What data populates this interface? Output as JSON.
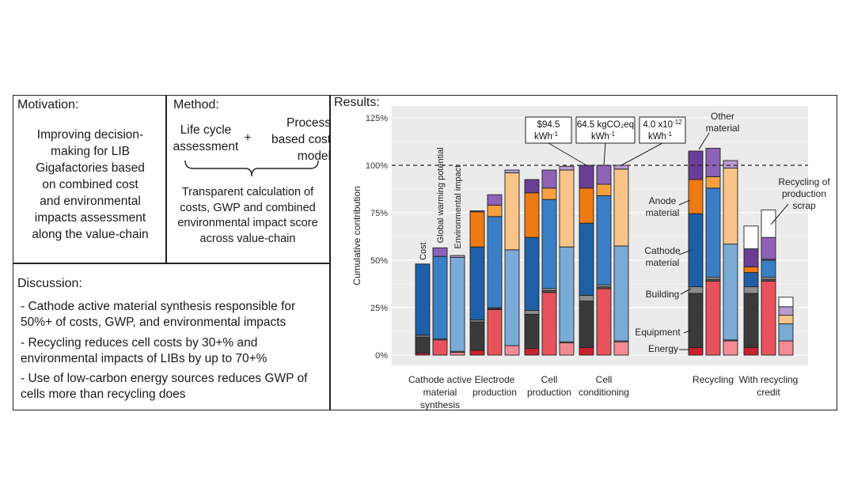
{
  "motivation": {
    "heading": "Motivation:",
    "lines": [
      "Improving decision-",
      "making for LIB",
      "Gigafactories based",
      "on combined cost",
      "and environmental",
      "impacts assessment",
      "along the value-chain"
    ]
  },
  "method": {
    "heading": "Method:",
    "lca": [
      "Life cycle",
      "assessment"
    ],
    "plus": "+",
    "pbcm": [
      "Process",
      "based cost",
      "model"
    ],
    "result": [
      "Transparent calculation of",
      "costs, GWP and combined",
      "environmental impact score",
      "across value-chain"
    ]
  },
  "discussion": {
    "heading": "Discussion:",
    "bullets": [
      [
        "- Cathode active material synthesis responsible for",
        "50%+ of costs, GWP, and environmental impacts"
      ],
      [
        "- Recycling reduces cell costs by 30+% and",
        "environmental impacts of LIBs by up to 70+%"
      ],
      [
        "- Use of low-carbon energy sources reduces GWP of",
        "cells more than recycling does"
      ]
    ]
  },
  "results_heading": "Results:",
  "chart_data": {
    "type": "bar",
    "stacked": true,
    "ylabel": "Cumulative contribution",
    "ylim": [
      -5,
      130
    ],
    "yticks": [
      0,
      25,
      50,
      75,
      100,
      125
    ],
    "ytick_labels": [
      "0%",
      "25%",
      "50%",
      "75%",
      "100%",
      "125%"
    ],
    "reference_line": 100,
    "metrics": [
      "Cost",
      "Global warming potential",
      "Environmental impact"
    ],
    "components": [
      "Energy",
      "Equipment",
      "Building",
      "Cathode material",
      "Anode material",
      "Other material",
      "Recycling of production scrap"
    ],
    "colors": {
      "Energy": [
        "#c9202f",
        "#e8525c",
        "#f28b93"
      ],
      "Equipment": [
        "#3a3a3a",
        "#555555",
        "#7a7a7a"
      ],
      "Building": [
        "#8c8c8c",
        "#a8a8a8",
        "#c9c9c9"
      ],
      "Cathode material": [
        "#1f5fa8",
        "#3a7fc5",
        "#7aaad6"
      ],
      "Anode material": [
        "#ee7a12",
        "#f5a040",
        "#f9c48a"
      ],
      "Other material": [
        "#6a3d96",
        "#8e62b6",
        "#b79bd1"
      ],
      "Recycling of production scrap": [
        "#ffffff",
        "#ffffff",
        "#ffffff"
      ]
    },
    "groups": [
      {
        "label": [
          "Cathode active",
          "material",
          "synthesis"
        ],
        "bars": [
          {
            "Energy": 1,
            "Equipment": 8.5,
            "Building": 1,
            "Cathode material": 37.5
          },
          {
            "Energy": 8,
            "Equipment": 0,
            "Building": 0.5,
            "Cathode material": 43.5,
            "Other material": 4.5
          },
          {
            "Energy": 1.5,
            "Equipment": 0,
            "Building": 0.5,
            "Cathode material": 49.5,
            "Other material": 1
          }
        ]
      },
      {
        "label": [
          "Electrode",
          "production"
        ],
        "bars": [
          {
            "Energy": 2.5,
            "Equipment": 15,
            "Building": 1,
            "Cathode material": 38.5,
            "Anode material": 18.5,
            "Other material": 0.5
          },
          {
            "Energy": 24,
            "Equipment": 0.5,
            "Building": 0.5,
            "Cathode material": 48,
            "Anode material": 6,
            "Other material": 5.5
          },
          {
            "Energy": 5,
            "Equipment": 0,
            "Building": 0,
            "Cathode material": 50.5,
            "Anode material": 40.5,
            "Other material": 1.5
          }
        ]
      },
      {
        "label": [
          "Cell",
          "production"
        ],
        "bars": [
          {
            "Energy": 3.5,
            "Equipment": 18,
            "Building": 2,
            "Cathode material": 38.5,
            "Anode material": 23.5,
            "Other material": 7
          },
          {
            "Energy": 33,
            "Equipment": 1,
            "Building": 1,
            "Cathode material": 47,
            "Anode material": 6,
            "Other material": 9.5
          },
          {
            "Energy": 6.5,
            "Equipment": 0,
            "Building": 0.5,
            "Cathode material": 50,
            "Anode material": 40.5,
            "Other material": 2
          }
        ]
      },
      {
        "label": [
          "Cell",
          "conditioning"
        ],
        "bars": [
          {
            "Energy": 4,
            "Equipment": 24.5,
            "Building": 3,
            "Cathode material": 38,
            "Anode material": 18.5,
            "Other material": 12
          },
          {
            "Energy": 35,
            "Equipment": 1,
            "Building": 1,
            "Cathode material": 47,
            "Anode material": 6,
            "Other material": 10
          },
          {
            "Energy": 7,
            "Equipment": 0,
            "Building": 0.5,
            "Cathode material": 50,
            "Anode material": 40.5,
            "Other material": 2
          }
        ]
      },
      {
        "label": [
          "Recycling"
        ],
        "bars": [
          {
            "Energy": 4,
            "Equipment": 28.5,
            "Building": 3.5,
            "Cathode material": 38.5,
            "Anode material": 18,
            "Other material": 15
          },
          {
            "Energy": 39,
            "Equipment": 1,
            "Building": 1,
            "Cathode material": 47,
            "Anode material": 6,
            "Other material": 15
          },
          {
            "Energy": 7.5,
            "Equipment": 0,
            "Building": 0.5,
            "Cathode material": 50.5,
            "Anode material": 40,
            "Other material": 4
          }
        ]
      },
      {
        "label": [
          "With recycling",
          "credit"
        ],
        "bars": [
          {
            "Energy": 4,
            "Equipment": 28.5,
            "Building": 3.5,
            "Cathode material": 7.5,
            "Anode material": 3,
            "Other material": 9.5,
            "Recycling of production scrap": 12
          },
          {
            "Energy": 39,
            "Equipment": 1,
            "Building": 1,
            "Cathode material": 9,
            "Anode material": 0.5,
            "Other material": 11.5,
            "Recycling of production scrap": 14.5
          },
          {
            "Energy": 7.5,
            "Equipment": 0,
            "Building": 0,
            "Cathode material": 9,
            "Anode material": 4.5,
            "Other material": 4.5,
            "Recycling of production scrap": 5
          }
        ]
      }
    ],
    "callouts": [
      {
        "label": "$94.5",
        "sub": "kWh",
        "sup": "-1"
      },
      {
        "label": "64.5 kgCO₂eq",
        "sub": "kWh",
        "sup": "-1"
      },
      {
        "label": "4.0 x10",
        "label_sup": "-12",
        "sub": "kWh",
        "sup": "-1"
      }
    ],
    "annotations": {
      "other_material": [
        "Other",
        "material"
      ],
      "anode_material": [
        "Anode",
        "material"
      ],
      "cathode_material": [
        "Cathode",
        "material"
      ],
      "building": "Building",
      "equipment": "Equipment",
      "energy": "Energy",
      "recycling_scrap": [
        "Recycling of",
        "production",
        "scrap"
      ]
    }
  }
}
